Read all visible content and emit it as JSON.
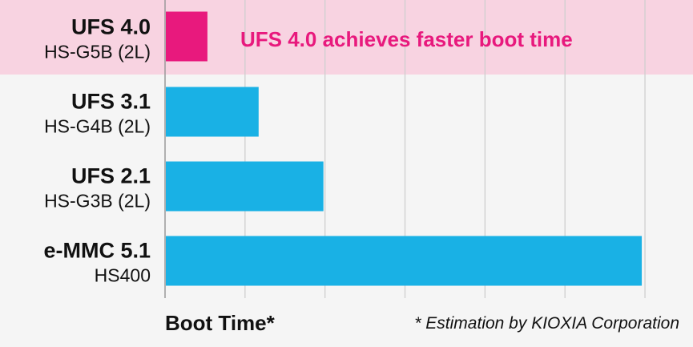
{
  "chart_data": {
    "type": "bar",
    "orientation": "horizontal",
    "categories": [
      {
        "name": "UFS 4.0",
        "subtitle": "HS-G5B (2L)"
      },
      {
        "name": "UFS 3.1",
        "subtitle": "HS-G4B (2L)"
      },
      {
        "name": "UFS 2.1",
        "subtitle": "HS-G3B (2L)"
      },
      {
        "name": "e-MMC 5.1",
        "subtitle": "HS400"
      }
    ],
    "values": [
      0.53,
      1.17,
      1.98,
      5.96
    ],
    "xlim": [
      0,
      6.3
    ],
    "gridlines": [
      1,
      2,
      3,
      4,
      5,
      6
    ],
    "grid": true,
    "xlabel": "Boot Time*",
    "ylabel": "",
    "annotation": "UFS 4.0 achieves faster boot time",
    "footnote": "* Estimation by KIOXIA Corporation",
    "highlight_index": 0,
    "colors": {
      "bar": "#19b1e5",
      "highlight_bar": "#e8197d",
      "highlight_band": "#f8d3e1",
      "annotation": "#e8197d",
      "grid": "#cfcfcf",
      "background": "#f5f5f5"
    }
  }
}
